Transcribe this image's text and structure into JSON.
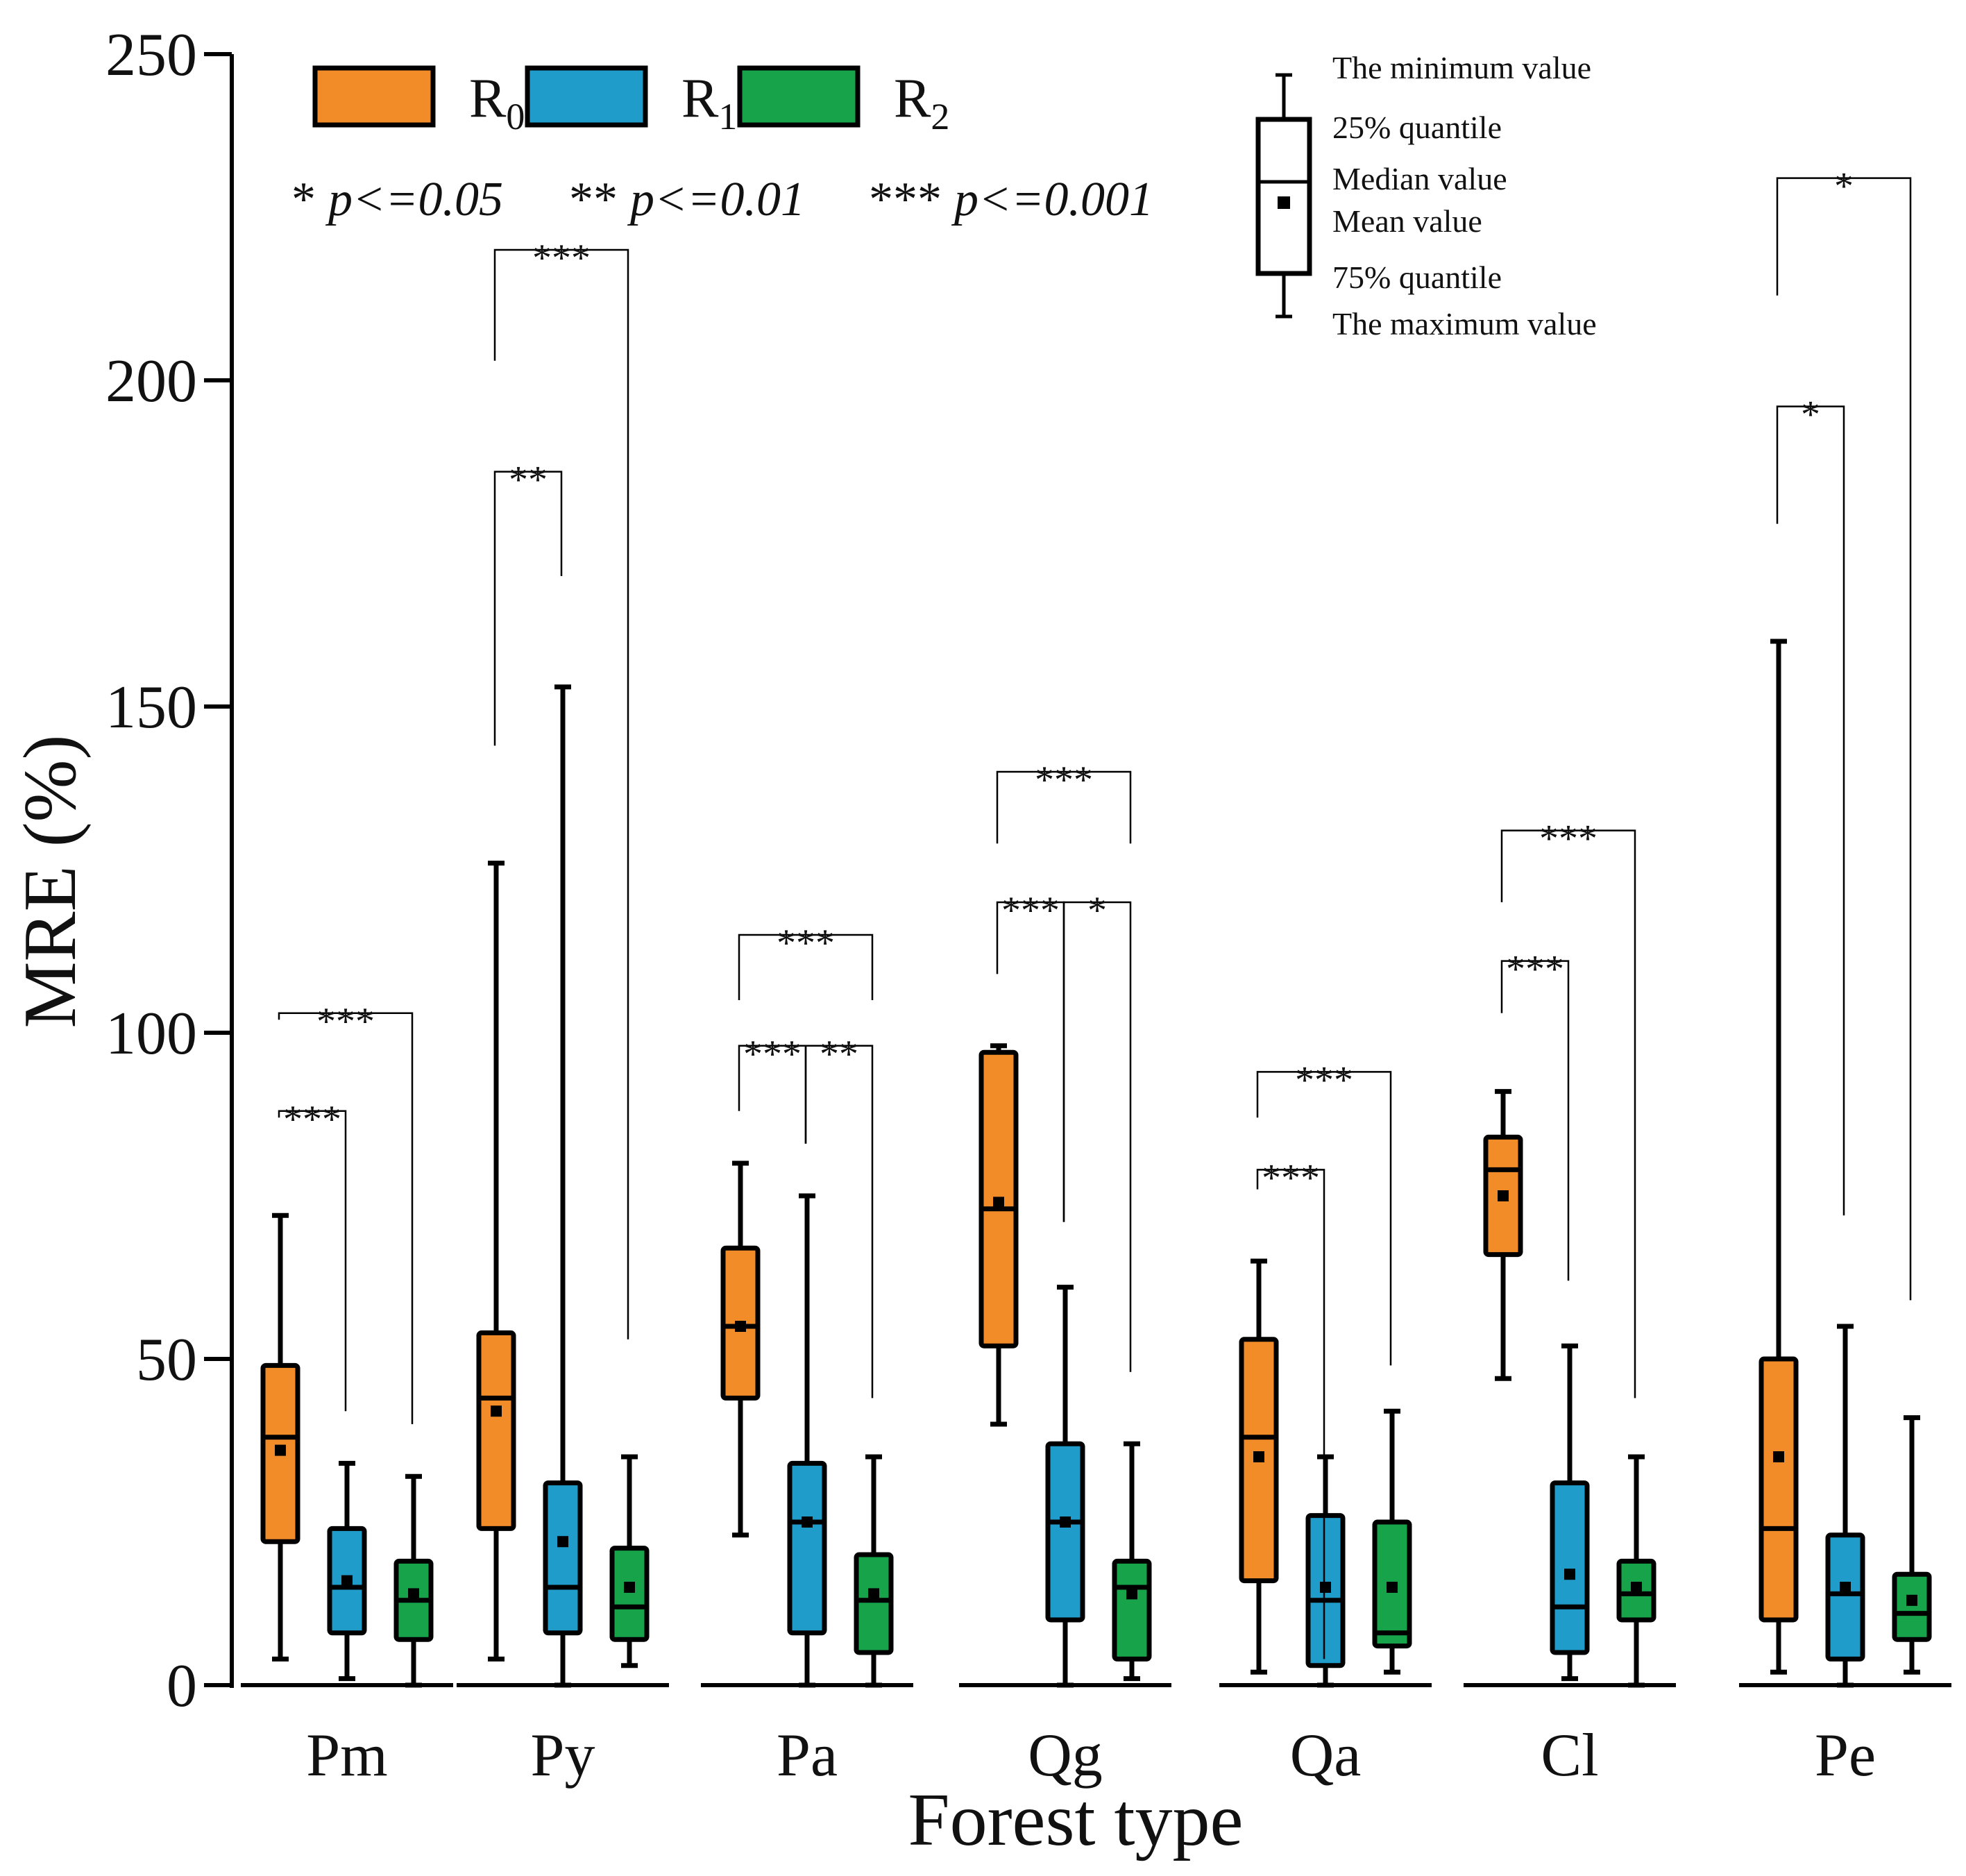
{
  "chart_data": {
    "type": "boxplot",
    "title": "",
    "xlabel": "Forest type",
    "ylabel": "MRE (%)",
    "ylim": [
      0,
      250
    ],
    "yticks": [
      0,
      50,
      100,
      150,
      200,
      250
    ],
    "categories": [
      "Pm",
      "Py",
      "Pa",
      "Qg",
      "Qa",
      "Cl",
      "Pe"
    ],
    "series": [
      {
        "name": "R0",
        "base": "R",
        "sub": "0",
        "color": "#F28C28",
        "boxes": [
          {
            "min": 4,
            "q1": 22,
            "median": 38,
            "mean": 36,
            "q3": 49,
            "max": 72
          },
          {
            "min": 4,
            "q1": 24,
            "median": 44,
            "mean": 42,
            "q3": 54,
            "max": 126
          },
          {
            "min": 23,
            "q1": 44,
            "median": 55,
            "mean": 55,
            "q3": 67,
            "max": 80
          },
          {
            "min": 40,
            "q1": 52,
            "median": 73,
            "mean": 74,
            "q3": 97,
            "max": 98
          },
          {
            "min": 2,
            "q1": 16,
            "median": 38,
            "mean": 35,
            "q3": 53,
            "max": 65
          },
          {
            "min": 47,
            "q1": 66,
            "median": 79,
            "mean": 75,
            "q3": 84,
            "max": 91
          },
          {
            "min": 2,
            "q1": 10,
            "median": 24,
            "mean": 35,
            "q3": 50,
            "max": 160
          }
        ]
      },
      {
        "name": "R1",
        "base": "R",
        "sub": "1",
        "color": "#1F9CC9",
        "boxes": [
          {
            "min": 1,
            "q1": 8,
            "median": 15,
            "mean": 16,
            "q3": 24,
            "max": 34
          },
          {
            "min": 0,
            "q1": 8,
            "median": 15,
            "mean": 22,
            "q3": 31,
            "max": 153
          },
          {
            "min": 0,
            "q1": 8,
            "median": 25,
            "mean": 25,
            "q3": 34,
            "max": 75
          },
          {
            "min": 0,
            "q1": 10,
            "median": 25,
            "mean": 25,
            "q3": 37,
            "max": 61
          },
          {
            "min": 0,
            "q1": 3,
            "median": 13,
            "mean": 15,
            "q3": 26,
            "max": 35
          },
          {
            "min": 1,
            "q1": 5,
            "median": 12,
            "mean": 17,
            "q3": 31,
            "max": 52
          },
          {
            "min": 0,
            "q1": 4,
            "median": 14,
            "mean": 15,
            "q3": 23,
            "max": 55
          }
        ]
      },
      {
        "name": "R2",
        "base": "R",
        "sub": "2",
        "color": "#16A34A",
        "boxes": [
          {
            "min": 0,
            "q1": 7,
            "median": 13,
            "mean": 14,
            "q3": 19,
            "max": 32
          },
          {
            "min": 3,
            "q1": 7,
            "median": 12,
            "mean": 15,
            "q3": 21,
            "max": 35
          },
          {
            "min": 0,
            "q1": 5,
            "median": 13,
            "mean": 14,
            "q3": 20,
            "max": 35
          },
          {
            "min": 1,
            "q1": 4,
            "median": 15,
            "mean": 14,
            "q3": 19,
            "max": 37
          },
          {
            "min": 2,
            "q1": 6,
            "median": 8,
            "mean": 15,
            "q3": 25,
            "max": 42
          },
          {
            "min": 0,
            "q1": 10,
            "median": 14,
            "mean": 15,
            "q3": 19,
            "max": 35
          },
          {
            "min": 2,
            "q1": 7,
            "median": 11,
            "mean": 13,
            "q3": 17,
            "max": 41
          }
        ]
      }
    ],
    "significance": [
      {
        "group": "Pm",
        "from": "R0",
        "to": "R1",
        "label": "***",
        "y": 88,
        "from_y": 87,
        "to_y": 42
      },
      {
        "group": "Pm",
        "from": "R0",
        "to": "R2",
        "label": "***",
        "y": 103,
        "from_y": 102,
        "to_y": 40
      },
      {
        "group": "Py",
        "from": "R0",
        "to": "R1",
        "label": "**",
        "y": 186,
        "from_y": 144,
        "to_y": 170
      },
      {
        "group": "Py",
        "from": "R0",
        "to": "R2",
        "label": "***",
        "y": 220,
        "from_y": 203,
        "to_y": 53
      },
      {
        "group": "Pa",
        "from": "R0",
        "to": "R1",
        "label": "***",
        "y": 98,
        "from_y": 88,
        "to_y": 83
      },
      {
        "group": "Pa",
        "from": "R1",
        "to": "R2",
        "label": "**",
        "y": 98,
        "from_y": 83,
        "to_y": 44
      },
      {
        "group": "Pa",
        "from": "R0",
        "to": "R2",
        "label": "***",
        "y": 115,
        "from_y": 105,
        "to_y": 105
      },
      {
        "group": "Qg",
        "from": "R0",
        "to": "R1",
        "label": "***",
        "y": 120,
        "from_y": 109,
        "to_y": 71
      },
      {
        "group": "Qg",
        "from": "R1",
        "to": "R2",
        "label": "*",
        "y": 120,
        "from_y": 71,
        "to_y": 48
      },
      {
        "group": "Qg",
        "from": "R0",
        "to": "R2",
        "label": "***",
        "y": 140,
        "from_y": 129,
        "to_y": 129
      },
      {
        "group": "Qa",
        "from": "R0",
        "to": "R1",
        "label": "***",
        "y": 79,
        "from_y": 76,
        "to_y": 4
      },
      {
        "group": "Qa",
        "from": "R0",
        "to": "R2",
        "label": "***",
        "y": 94,
        "from_y": 87,
        "to_y": 49
      },
      {
        "group": "Cl",
        "from": "R0",
        "to": "R1",
        "label": "***",
        "y": 111,
        "from_y": 103,
        "to_y": 62
      },
      {
        "group": "Cl",
        "from": "R0",
        "to": "R2",
        "label": "***",
        "y": 131,
        "from_y": 120,
        "to_y": 44
      },
      {
        "group": "Pe",
        "from": "R0",
        "to": "R1",
        "label": "*",
        "y": 196,
        "from_y": 178,
        "to_y": 72
      },
      {
        "group": "Pe",
        "from": "R0",
        "to": "R2",
        "label": "*",
        "y": 231,
        "from_y": 213,
        "to_y": 59
      }
    ],
    "pvalue_legend": [
      {
        "stars": "*",
        "text": "p<=0.05"
      },
      {
        "stars": "**",
        "text": "p<=0.01"
      },
      {
        "stars": "***",
        "text": "p<=0.001"
      }
    ],
    "box_key": {
      "min": "The minimum value",
      "q1": "25% quantile",
      "median": "Median value",
      "mean": "Mean value",
      "q3": "75% quantile",
      "max": "The maximum value"
    }
  }
}
